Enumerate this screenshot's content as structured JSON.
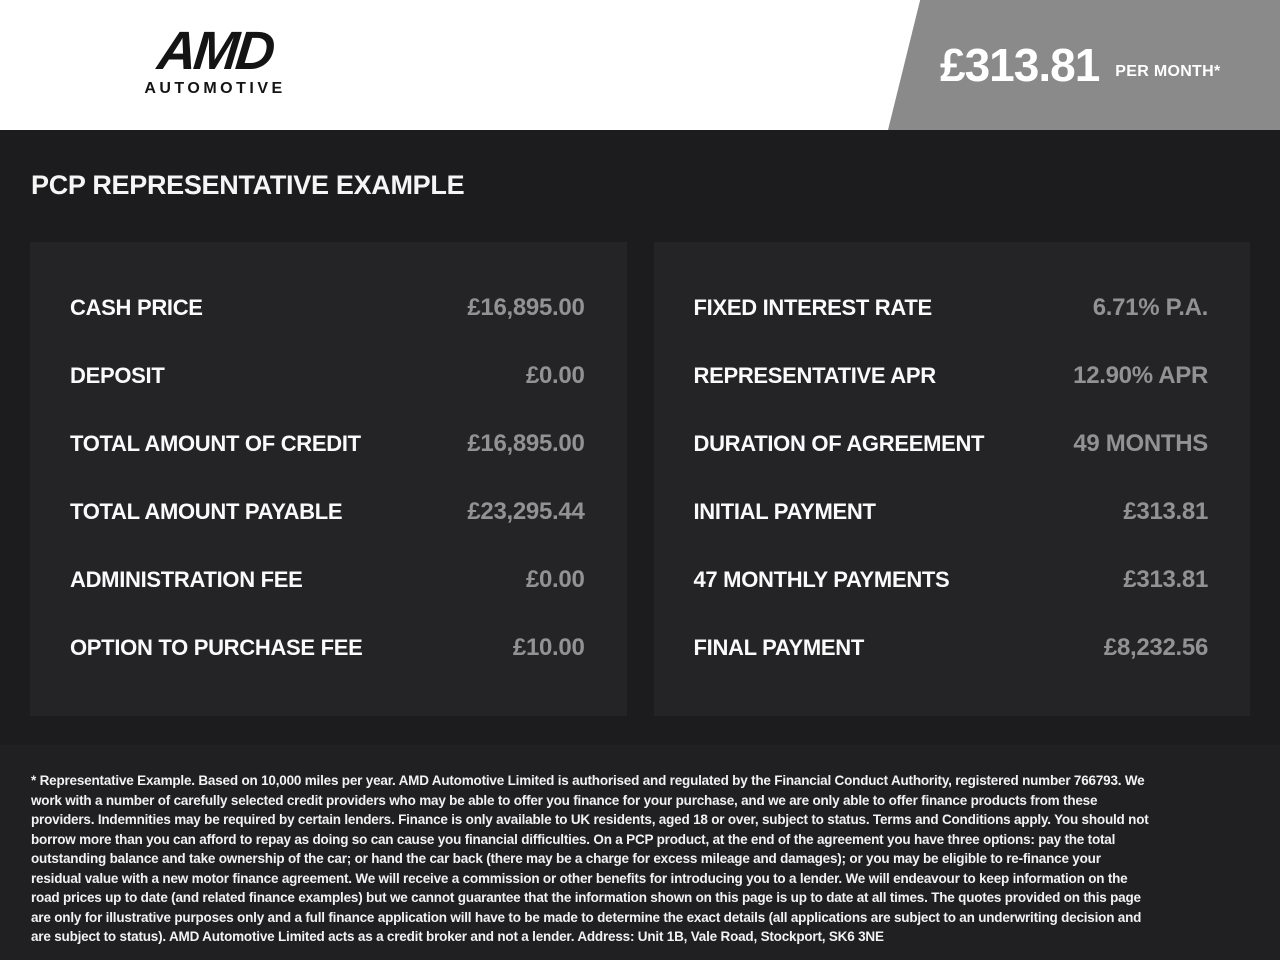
{
  "header": {
    "logo": {
      "line1": "AMD",
      "line2": "AUTOMOTIVE"
    },
    "price_banner": {
      "amount": "£313.81",
      "period": "PER MONTH*"
    }
  },
  "page_title": "PCP REPRESENTATIVE EXAMPLE",
  "panels": {
    "left": {
      "rows": [
        {
          "label": "CASH PRICE",
          "value": "£16,895.00"
        },
        {
          "label": "DEPOSIT",
          "value": "£0.00"
        },
        {
          "label": "TOTAL AMOUNT OF CREDIT",
          "value": "£16,895.00"
        },
        {
          "label": "TOTAL AMOUNT PAYABLE",
          "value": "£23,295.44"
        },
        {
          "label": "ADMINISTRATION FEE",
          "value": "£0.00"
        },
        {
          "label": "OPTION TO PURCHASE FEE",
          "value": "£10.00"
        }
      ]
    },
    "right": {
      "rows": [
        {
          "label": "FIXED INTEREST RATE",
          "value": "6.71% P.A."
        },
        {
          "label": "REPRESENTATIVE APR",
          "value": "12.90% APR"
        },
        {
          "label": "DURATION OF AGREEMENT",
          "value": "49 MONTHS"
        },
        {
          "label": "INITIAL PAYMENT",
          "value": "£313.81"
        },
        {
          "label": "47 MONTHLY PAYMENTS",
          "value": "£313.81"
        },
        {
          "label": "FINAL PAYMENT",
          "value": "£8,232.56"
        }
      ]
    }
  },
  "footer": {
    "disclaimer": "* Representative Example. Based on 10,000 miles per year. AMD Automotive Limited is authorised and regulated by the Financial Conduct Authority, registered number 766793. We work with a number of carefully selected credit providers who may be able to offer you finance for your purchase, and we are only able to offer finance products from these providers. Indemnities may be required by certain lenders. Finance is only available to UK residents, aged 18 or over, subject to status. Terms and Conditions apply. You should not borrow more than you can afford to repay as doing so can cause you financial difficulties. On a PCP product, at the end of the agreement you have three options: pay the total outstanding balance and take ownership of the car; or hand the car back (there may be a charge for excess mileage and damages); or you may be eligible to re-finance your residual value with a new motor finance agreement. We will receive a commission or other benefits for introducing you to a lender. We will endeavour to keep information on the road prices up to date (and related finance examples) but we cannot guarantee that the information shown on this page is up to date at all times. The quotes provided on this page are only for illustrative purposes only and a full finance application will have to be made to determine the exact details (all applications are subject to an underwriting decision and are subject to status). AMD Automotive Limited acts as a credit broker and not a lender. Address: Unit 1B, Vale Road, Stockport, SK6 3NE"
  },
  "colors": {
    "header_bg": "#ffffff",
    "banner_bg": "#8a8a8a",
    "body_bg": "#1c1c1e",
    "panel_bg": "#242427",
    "footer_bg": "#202023",
    "label_text": "#fafafa",
    "value_text": "#929292"
  }
}
